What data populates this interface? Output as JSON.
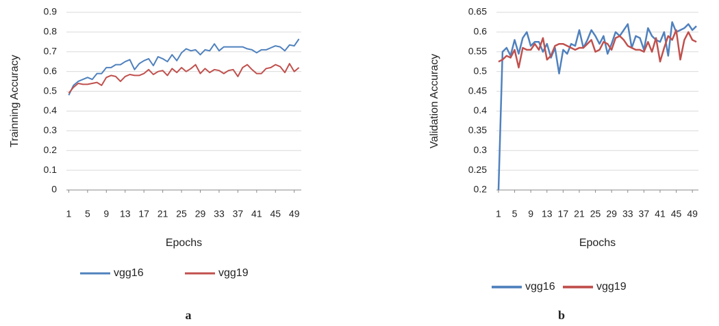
{
  "chart_data": [
    {
      "type": "line",
      "caption": "a",
      "x_label": "Epochs",
      "y_label": "Trainning Accuracy",
      "x": [
        1,
        2,
        3,
        4,
        5,
        6,
        7,
        8,
        9,
        10,
        11,
        12,
        13,
        14,
        15,
        16,
        17,
        18,
        19,
        20,
        21,
        22,
        23,
        24,
        25,
        26,
        27,
        28,
        29,
        30,
        31,
        32,
        33,
        34,
        35,
        36,
        37,
        38,
        39,
        40,
        41,
        42,
        43,
        44,
        45,
        46,
        47,
        48,
        49,
        50
      ],
      "xlim": [
        0.5,
        50.5
      ],
      "xticks": [
        1,
        5,
        9,
        13,
        17,
        21,
        25,
        29,
        33,
        37,
        41,
        45,
        49
      ],
      "ylim": [
        0,
        0.9
      ],
      "yticks": [
        0,
        0.1,
        0.2,
        0.3,
        0.4,
        0.5,
        0.6,
        0.7,
        0.8,
        0.9
      ],
      "grid": true,
      "legend": "bottom",
      "line_width": 2,
      "series": [
        {
          "name": "vgg16",
          "color": "#4f81bd",
          "values": [
            0.48,
            0.53,
            0.55,
            0.56,
            0.57,
            0.56,
            0.59,
            0.59,
            0.62,
            0.62,
            0.635,
            0.635,
            0.65,
            0.66,
            0.61,
            0.64,
            0.655,
            0.665,
            0.63,
            0.675,
            0.665,
            0.65,
            0.685,
            0.655,
            0.695,
            0.715,
            0.705,
            0.71,
            0.685,
            0.71,
            0.705,
            0.74,
            0.705,
            0.725,
            0.725,
            0.725,
            0.725,
            0.725,
            0.715,
            0.71,
            0.695,
            0.71,
            0.71,
            0.72,
            0.73,
            0.725,
            0.705,
            0.735,
            0.73,
            0.765
          ]
        },
        {
          "name": "vgg19",
          "color": "#c0504d",
          "values": [
            0.49,
            0.52,
            0.54,
            0.535,
            0.535,
            0.54,
            0.545,
            0.53,
            0.57,
            0.58,
            0.575,
            0.55,
            0.575,
            0.585,
            0.58,
            0.58,
            0.59,
            0.61,
            0.585,
            0.6,
            0.605,
            0.58,
            0.615,
            0.595,
            0.62,
            0.6,
            0.615,
            0.635,
            0.59,
            0.615,
            0.595,
            0.61,
            0.605,
            0.59,
            0.605,
            0.61,
            0.575,
            0.62,
            0.635,
            0.61,
            0.59,
            0.59,
            0.615,
            0.62,
            0.635,
            0.625,
            0.595,
            0.64,
            0.6,
            0.62
          ]
        }
      ]
    },
    {
      "type": "line",
      "caption": "b",
      "x_label": "Epochs",
      "y_label": "Validation Accuracy",
      "x": [
        1,
        2,
        3,
        4,
        5,
        6,
        7,
        8,
        9,
        10,
        11,
        12,
        13,
        14,
        15,
        16,
        17,
        18,
        19,
        20,
        21,
        22,
        23,
        24,
        25,
        26,
        27,
        28,
        29,
        30,
        31,
        32,
        33,
        34,
        35,
        36,
        37,
        38,
        39,
        40,
        41,
        42,
        43,
        44,
        45,
        46,
        47,
        48,
        49,
        50
      ],
      "xlim": [
        0.5,
        50.5
      ],
      "xticks": [
        1,
        5,
        9,
        13,
        17,
        21,
        25,
        29,
        33,
        37,
        41,
        45,
        49
      ],
      "ylim": [
        0.2,
        0.65
      ],
      "yticks": [
        0.2,
        0.25,
        0.3,
        0.35,
        0.4,
        0.45,
        0.5,
        0.55,
        0.6,
        0.65
      ],
      "grid": true,
      "legend": "bottom",
      "line_width": 2.5,
      "series": [
        {
          "name": "vgg16",
          "color": "#4f81bd",
          "values": [
            0.2,
            0.55,
            0.56,
            0.54,
            0.58,
            0.545,
            0.585,
            0.6,
            0.565,
            0.575,
            0.575,
            0.55,
            0.57,
            0.535,
            0.56,
            0.495,
            0.555,
            0.545,
            0.57,
            0.565,
            0.605,
            0.56,
            0.58,
            0.605,
            0.59,
            0.57,
            0.59,
            0.545,
            0.57,
            0.6,
            0.59,
            0.605,
            0.62,
            0.56,
            0.59,
            0.585,
            0.555,
            0.61,
            0.59,
            0.58,
            0.575,
            0.6,
            0.54,
            0.625,
            0.6,
            0.605,
            0.61,
            0.62,
            0.605,
            0.615
          ]
        },
        {
          "name": "vgg19",
          "color": "#c0504d",
          "values": [
            0.525,
            0.53,
            0.54,
            0.535,
            0.555,
            0.51,
            0.56,
            0.555,
            0.555,
            0.57,
            0.555,
            0.585,
            0.53,
            0.54,
            0.565,
            0.57,
            0.57,
            0.565,
            0.56,
            0.555,
            0.56,
            0.56,
            0.57,
            0.58,
            0.55,
            0.555,
            0.575,
            0.57,
            0.555,
            0.585,
            0.59,
            0.58,
            0.565,
            0.56,
            0.555,
            0.555,
            0.55,
            0.575,
            0.55,
            0.585,
            0.525,
            0.56,
            0.59,
            0.58,
            0.605,
            0.53,
            0.58,
            0.6,
            0.58,
            0.575
          ]
        }
      ]
    }
  ]
}
